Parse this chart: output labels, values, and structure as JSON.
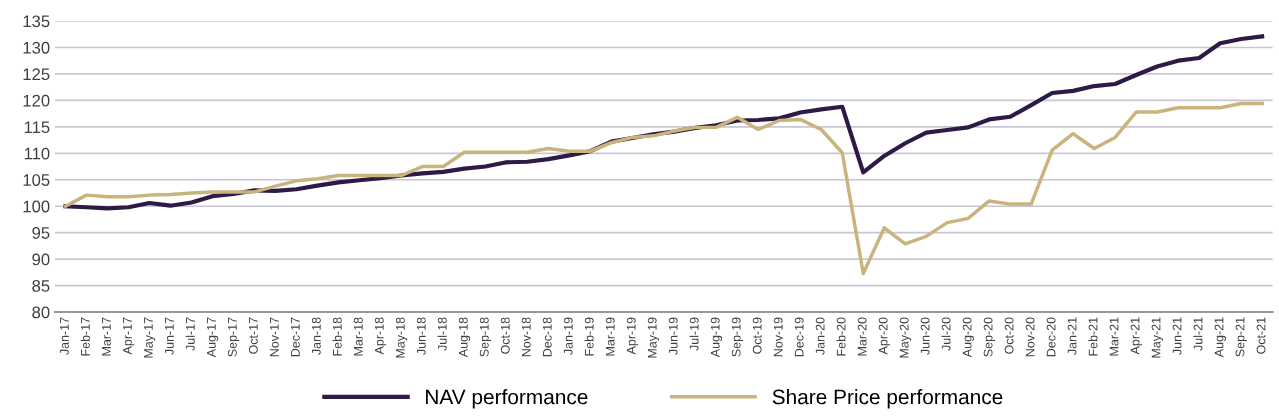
{
  "chart_data": {
    "type": "line",
    "categories": [
      "Jan-17",
      "Feb-17",
      "Mar-17",
      "Apr-17",
      "May-17",
      "Jun-17",
      "Jul-17",
      "Aug-17",
      "Sep-17",
      "Oct-17",
      "Nov-17",
      "Dec-17",
      "Jan-18",
      "Feb-18",
      "Mar-18",
      "Apr-18",
      "May-18",
      "Jun-18",
      "Jul-18",
      "Aug-18",
      "Sep-18",
      "Oct-18",
      "Nov-18",
      "Dec-18",
      "Jan-19",
      "Feb-19",
      "Mar-19",
      "Apr-19",
      "May-19",
      "Jun-19",
      "Jul-19",
      "Aug-19",
      "Sep-19",
      "Oct-19",
      "Nov-19",
      "Dec-19",
      "Jan-20",
      "Feb-20",
      "Mar-20",
      "Apr-20",
      "May-20",
      "Jun-20",
      "Jul-20",
      "Aug-20",
      "Sep-20",
      "Oct-20",
      "Nov-20",
      "Dec-20",
      "Jan-21",
      "Feb-21",
      "Mar-21",
      "Apr-21",
      "May-21",
      "Jun-21",
      "Jul-21",
      "Aug-21",
      "Sep-21",
      "Oct-21"
    ],
    "series": [
      {
        "name": "NAV performance",
        "color": "#2e1a47",
        "values": [
          100,
          99.8,
          99.6,
          99.8,
          100.6,
          100.1,
          100.7,
          101.9,
          102.3,
          103.0,
          102.9,
          103.2,
          103.9,
          104.5,
          104.9,
          105.3,
          105.8,
          106.2,
          106.5,
          107.1,
          107.5,
          108.3,
          108.4,
          108.9,
          109.6,
          110.4,
          112.2,
          112.9,
          113.6,
          114.1,
          114.8,
          115.3,
          116.2,
          116.3,
          116.6,
          117.7,
          118.3,
          118.8,
          106.4,
          109.5,
          111.9,
          113.9,
          114.4,
          114.9,
          116.4,
          116.9,
          119.1,
          121.4,
          121.8,
          122.7,
          123.1,
          124.8,
          126.4,
          127.5,
          128.0,
          130.8,
          131.6,
          132.1
        ]
      },
      {
        "name": "Share Price performance",
        "color": "#c8b47c",
        "values": [
          100,
          102.1,
          101.8,
          101.8,
          102.1,
          102.2,
          102.5,
          102.7,
          102.7,
          102.7,
          103.8,
          104.8,
          105.2,
          105.8,
          105.8,
          105.8,
          105.8,
          107.5,
          107.5,
          110.2,
          110.2,
          110.2,
          110.2,
          110.9,
          110.4,
          110.4,
          112.0,
          113.0,
          113.3,
          114.2,
          114.9,
          114.9,
          116.8,
          114.5,
          116.2,
          116.4,
          114.5,
          110.1,
          87.3,
          95.9,
          92.9,
          94.3,
          96.9,
          97.7,
          101.0,
          100.4,
          100.4,
          110.6,
          113.7,
          110.9,
          113.0,
          117.8,
          117.8,
          118.6,
          118.6,
          118.6,
          119.4,
          119.4
        ]
      }
    ],
    "ylim": [
      80,
      135
    ],
    "yticks": [
      80,
      85,
      90,
      95,
      100,
      105,
      110,
      115,
      120,
      125,
      130,
      135
    ],
    "grid": "y",
    "legend": "bottom",
    "marker": "none",
    "line_style": "solid"
  }
}
